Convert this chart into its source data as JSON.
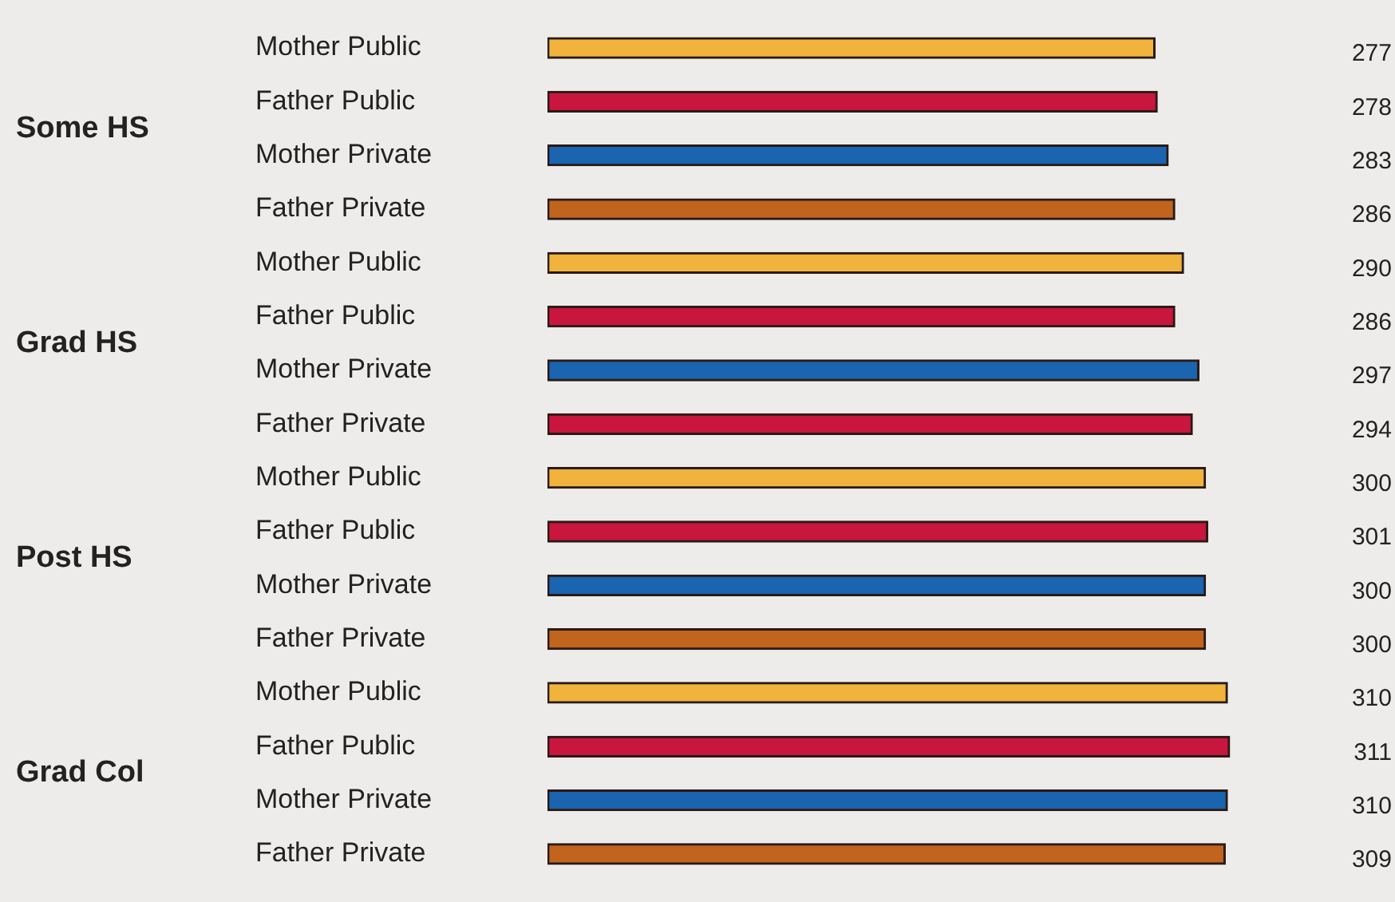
{
  "chart_data": {
    "type": "bar",
    "orientation": "horizontal",
    "categories": [
      "Mother Public",
      "Father Public",
      "Mother Private",
      "Father Private",
      "Mother Public",
      "Father Public",
      "Mother Private",
      "Father Private",
      "Mother Public",
      "Father Public",
      "Mother Private",
      "Father Private",
      "Mother Public",
      "Father Public",
      "Mother Private",
      "Father Private"
    ],
    "values": [
      277,
      278,
      283,
      286,
      290,
      286,
      297,
      294,
      300,
      301,
      300,
      300,
      310,
      311,
      310,
      309
    ],
    "colors": [
      "#f0b43c",
      "#c8163e",
      "#1a64b0",
      "#c0641e",
      "#f0b43c",
      "#c8163e",
      "#1a64b0",
      "#c8163e",
      "#f0b43c",
      "#c8163e",
      "#1a64b0",
      "#c0641e",
      "#f0b43c",
      "#c8163e",
      "#1a64b0",
      "#c0641e"
    ],
    "tick_labels": "y",
    "grid": false,
    "legend": false,
    "data_labels": true,
    "annotations": [
      "Some HS",
      "Grad HS",
      "Post HS",
      "Grad Col"
    ]
  }
}
